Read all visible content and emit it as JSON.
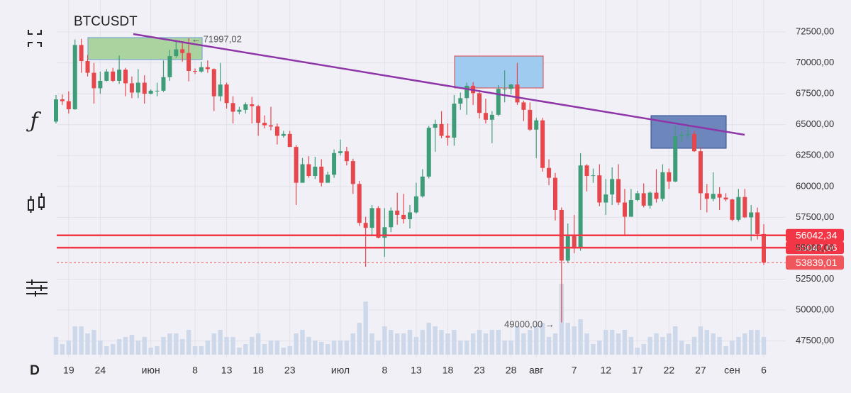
{
  "chart_data": {
    "type": "candlestick",
    "title": "BTCUSDT",
    "toolbar": {
      "indicator": "ƒ",
      "interval": "D"
    },
    "categories": [
      null,
      null,
      "19",
      null,
      null,
      null,
      null,
      "24",
      null,
      null,
      null,
      null,
      null,
      null,
      null,
      "июн",
      null,
      null,
      null,
      null,
      null,
      null,
      "8",
      null,
      null,
      null,
      null,
      "13",
      null,
      null,
      null,
      null,
      "18",
      null,
      null,
      null,
      null,
      "23",
      null,
      null,
      null,
      null,
      null,
      null,
      null,
      "июл",
      null,
      null,
      null,
      null,
      null,
      null,
      "8",
      null,
      null,
      null,
      null,
      "13",
      null,
      null,
      null,
      null,
      "18",
      null,
      null,
      null,
      null,
      "23",
      null,
      null,
      null,
      null,
      "28",
      null,
      null,
      null,
      "авг",
      null,
      null,
      null,
      null,
      null,
      "7",
      null,
      null,
      null,
      null,
      "12",
      null,
      null,
      null,
      null,
      "17",
      null,
      null,
      null,
      null,
      "22",
      null,
      null,
      null,
      null,
      "27",
      null,
      null,
      null,
      null,
      "сен",
      null,
      null,
      null,
      null,
      "6"
    ],
    "open": [
      65250,
      67050,
      66900,
      66250,
      71450,
      70150,
      69200,
      67950,
      68550,
      69300,
      68550,
      69450,
      68350,
      67600,
      68400,
      67500,
      67750,
      67750,
      68850,
      70550,
      71100,
      70800,
      69350,
      69300,
      69650,
      69500,
      67300,
      68250,
      66750,
      66050,
      66200,
      66650,
      66500,
      65150,
      64950,
      64850,
      64100,
      64250,
      63200,
      60300,
      61800,
      60850,
      61600,
      60300,
      60950,
      62700,
      62850,
      62050,
      60200,
      57050,
      56650,
      58250,
      55850,
      56700,
      58050,
      57700,
      57350,
      57900,
      59200,
      60800,
      64750,
      65050,
      64100,
      63950,
      66700,
      67150,
      68150,
      67550,
      65950,
      65400,
      65800,
      67900,
      67900,
      68250,
      66800,
      66200,
      64600,
      65350,
      61500,
      60700,
      58100,
      54000,
      56050,
      55100,
      61700,
      60850,
      60900,
      58700,
      59350,
      60600,
      58700,
      57550,
      58900,
      59450,
      58450,
      59500,
      59000,
      61150,
      60400,
      64050,
      64150,
      64250,
      62850,
      59450,
      59000,
      59400,
      59100,
      58950,
      57300,
      59150,
      57500,
      57900,
      56150
    ],
    "high": [
      67400,
      67450,
      67700,
      71900,
      71950,
      70650,
      70000,
      69300,
      69500,
      69600,
      70600,
      69600,
      68900,
      69500,
      69000,
      67850,
      68400,
      70200,
      71050,
      71750,
      71600,
      71997.02,
      69550,
      70100,
      70200,
      69550,
      70000,
      68400,
      67300,
      66450,
      66800,
      67250,
      66600,
      65750,
      66450,
      65100,
      64500,
      64500,
      63350,
      62300,
      62450,
      62400,
      62200,
      61200,
      63000,
      63800,
      63200,
      62250,
      60450,
      57550,
      58500,
      58400,
      58250,
      58300,
      59500,
      59400,
      58500,
      60300,
      61400,
      64900,
      65400,
      66100,
      65100,
      67400,
      67600,
      68400,
      68450,
      67800,
      67100,
      66100,
      68200,
      69400,
      68300,
      70000,
      66950,
      66800,
      65550,
      65550,
      62200,
      61100,
      58300,
      57000,
      57700,
      62700,
      61800,
      61450,
      61800,
      60600,
      61550,
      61800,
      59800,
      59800,
      59650,
      60250,
      59600,
      61400,
      61800,
      61450,
      64900,
      64500,
      65000,
      64500,
      63200,
      60200,
      61150,
      59950,
      59450,
      59000,
      59800,
      59800,
      58500,
      58300,
      56950
    ],
    "low": [
      65100,
      66600,
      65900,
      66200,
      69200,
      68900,
      66700,
      67500,
      68500,
      68450,
      68300,
      67300,
      67150,
      67150,
      66700,
      67450,
      67300,
      67650,
      68550,
      70400,
      70100,
      68500,
      69100,
      69200,
      69200,
      66100,
      66900,
      66300,
      65100,
      65850,
      65900,
      65100,
      64100,
      64700,
      64550,
      63400,
      63950,
      63200,
      58500,
      60300,
      60700,
      60600,
      60000,
      60300,
      60700,
      62500,
      61700,
      59400,
      56800,
      53500,
      56050,
      55800,
      54300,
      56300,
      56900,
      57000,
      56600,
      57800,
      59100,
      60650,
      62800,
      63900,
      63300,
      63300,
      66200,
      65800,
      66600,
      65500,
      65100,
      63500,
      65700,
      66800,
      67450,
      66600,
      65300,
      64500,
      62300,
      61200,
      60100,
      57250,
      49000,
      53800,
      54600,
      54800,
      59600,
      60300,
      58400,
      57700,
      58500,
      58500,
      56100,
      57800,
      58800,
      58300,
      58200,
      58700,
      58800,
      59800,
      60350,
      63600,
      63900,
      62800,
      58100,
      57900,
      58800,
      58100,
      58800,
      57200,
      57150,
      57450,
      55600,
      55700,
      53650
    ],
    "close": [
      67050,
      66900,
      66250,
      71450,
      70150,
      69200,
      67950,
      68550,
      69300,
      68550,
      69450,
      68350,
      67600,
      68400,
      67500,
      67750,
      67750,
      68850,
      70550,
      71100,
      70800,
      69350,
      69300,
      69650,
      69500,
      67300,
      68250,
      66750,
      66050,
      66200,
      66650,
      66500,
      65150,
      64950,
      64850,
      64100,
      64250,
      63200,
      60300,
      61800,
      60850,
      61600,
      60300,
      60950,
      62700,
      62850,
      62050,
      60200,
      57050,
      56650,
      58250,
      55850,
      56700,
      58050,
      57700,
      57350,
      57900,
      59200,
      60800,
      64750,
      65050,
      64100,
      63950,
      66700,
      67150,
      68150,
      67550,
      65950,
      65400,
      65800,
      67900,
      67900,
      68250,
      66800,
      66200,
      64600,
      65350,
      61500,
      60700,
      58100,
      54000,
      56050,
      55100,
      61700,
      60850,
      60900,
      58700,
      59350,
      60600,
      58700,
      57550,
      58900,
      59450,
      58450,
      59500,
      59000,
      61150,
      60400,
      64050,
      64150,
      64250,
      62850,
      59450,
      59000,
      59400,
      59100,
      58950,
      57300,
      59150,
      57500,
      57900,
      56150,
      53839.01
    ],
    "volume": [
      25,
      15,
      20,
      40,
      40,
      30,
      35,
      20,
      12,
      15,
      22,
      25,
      28,
      20,
      25,
      10,
      12,
      25,
      30,
      30,
      22,
      35,
      12,
      12,
      20,
      30,
      35,
      25,
      25,
      10,
      15,
      25,
      30,
      15,
      20,
      20,
      10,
      12,
      30,
      35,
      25,
      20,
      18,
      15,
      20,
      20,
      20,
      30,
      45,
      75,
      30,
      20,
      40,
      35,
      30,
      30,
      35,
      25,
      35,
      45,
      40,
      35,
      30,
      35,
      20,
      20,
      30,
      35,
      30,
      35,
      35,
      20,
      20,
      40,
      30,
      35,
      40,
      45,
      25,
      30,
      100,
      45,
      40,
      50,
      30,
      15,
      20,
      35,
      35,
      30,
      35,
      25,
      10,
      15,
      25,
      30,
      25,
      30,
      40,
      20,
      15,
      25,
      40,
      35,
      30,
      25,
      12,
      20,
      25,
      30,
      35,
      35,
      25
    ],
    "up_color": "#3f9c78",
    "down_color": "#e5474d",
    "volume_color": "#cdd8ea",
    "ylim": [
      46500,
      74000
    ],
    "yticks": [
      {
        "value": 47500,
        "label": "47500,00"
      },
      {
        "value": 50000,
        "label": "50000,00"
      },
      {
        "value": 52500,
        "label": "52500,00"
      },
      {
        "value": 55000,
        "label": "55000,00"
      },
      {
        "value": 57500,
        "label": "57500,00"
      },
      {
        "value": 60000,
        "label": "60000,00"
      },
      {
        "value": 62500,
        "label": "62500,00"
      },
      {
        "value": 65000,
        "label": "65000,00"
      },
      {
        "value": 67500,
        "label": "67500,00"
      },
      {
        "value": 70000,
        "label": "70000,00"
      },
      {
        "value": 72500,
        "label": "72500,00"
      }
    ],
    "grid": true,
    "levels": [
      {
        "value": 56042.34,
        "label": "56042,34",
        "color": "#f23645"
      },
      {
        "value": 55047.66,
        "label": "55047,66",
        "color": "#f23645"
      }
    ],
    "last_price": {
      "value": 53839.01,
      "label": "53839,01",
      "color": "#f0575c"
    },
    "annotations": [
      "← 71997,02",
      "49000,00 →"
    ]
  }
}
